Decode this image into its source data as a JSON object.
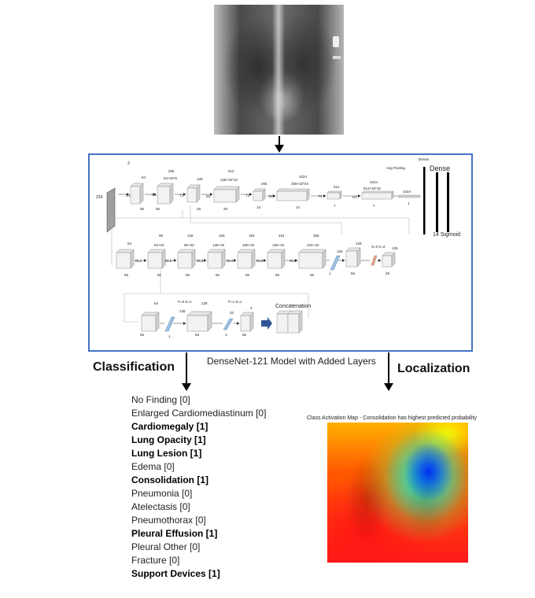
{
  "model": {
    "caption": "DenseNet-121 Model with Added Layers",
    "top_row": {
      "input_depth": "3",
      "input_size": "224",
      "c1_channels": "64",
      "c1_size": "56",
      "c1_label": "C1",
      "d1_channels": "256",
      "d1_sub": "64+32*6",
      "d1_label": "D1",
      "d1_size": "56",
      "t1_label": "T1",
      "t1_channels": "128",
      "t1_size": "28",
      "d2_label": "D2",
      "d2_channels": "512",
      "d2_sub": "128+32*12",
      "d2_size": "28",
      "t2_label": "T2",
      "t2_channels": "256",
      "t2_size": "14",
      "d3_label": "D3",
      "d3_channels": "1024",
      "d3_sub": "256+32*24",
      "d3_size": "14",
      "t3_label": "T3",
      "t3_channels": "512",
      "t3_size": "7",
      "d4_label": "D4",
      "d4_channels": "1024",
      "d4_sub": "512+32*16",
      "d4_size": "7",
      "pool_label": "Avg Pooling",
      "pool_channels": "1024",
      "pool_size": "1",
      "dense_small": "Dense",
      "dense_label": "Dense",
      "sigmoid_label": "14 Sigmoid"
    },
    "middle_row": {
      "dl0_channels": "64",
      "dl0_size": "56",
      "dl1_label": "DL1",
      "dl1_channels": "96",
      "dl1_sub": "64+32",
      "dl1_size": "56",
      "dl2_label": "DL2",
      "dl2_channels": "128",
      "dl2_sub": "96+32",
      "dl2_size": "56",
      "dl3_label": "DL3",
      "dl3_channels": "160",
      "dl3_sub": "128+32",
      "dl3_size": "56",
      "dl4_label": "DL4",
      "dl4_channels": "192",
      "dl4_sub": "160+32",
      "dl4_size": "56",
      "dl5_label": "DL5",
      "dl5_channels": "224",
      "dl5_sub": "192+32",
      "dl5_size": "56",
      "dl6_label": "DL5",
      "dl6_channels": "256",
      "dl6_sub": "224+32",
      "dl6_size": "56",
      "conv_channels": "128",
      "conv_size": "1",
      "conv2_channels": "128",
      "conv2_size": "56",
      "pool_params": "S=2 K=2",
      "out_channels": "128",
      "out_size": "28"
    },
    "bottom_row": {
      "in_channels": "64",
      "in_size": "56",
      "bn_size": "1",
      "conv_params": "P=0 S=1",
      "conv_channels_a": "128",
      "conv_channels": "128",
      "conv_size": "56",
      "conv2_params": "P=1 S=1",
      "conv2_channels": "32",
      "conv2_size": "3",
      "out_channels": "3",
      "out_size": "56",
      "concat_label": "Concatenation"
    }
  },
  "classification": {
    "title": "Classification",
    "findings": [
      {
        "text": "No Finding  [0]",
        "positive": false
      },
      {
        "text": "Enlarged Cardiomediastinum [0]",
        "positive": false
      },
      {
        "text": "Cardiomegaly [1]",
        "positive": true
      },
      {
        "text": "Lung Opacity [1]",
        "positive": true
      },
      {
        "text": "Lung Lesion [1]",
        "positive": true
      },
      {
        "text": "Edema [0]",
        "positive": false
      },
      {
        "text": "Consolidation [1]",
        "positive": true
      },
      {
        "text": "Pneumonia [0]",
        "positive": false
      },
      {
        "text": "Atelectasis [0]",
        "positive": false
      },
      {
        "text": "Pneumothorax [0]",
        "positive": false
      },
      {
        "text": "Pleural Effusion [1]",
        "positive": true
      },
      {
        "text": "Pleural Other [0]",
        "positive": false
      },
      {
        "text": "Fracture [0]",
        "positive": false
      },
      {
        "text": "Support Devices [1]",
        "positive": true
      }
    ]
  },
  "localization": {
    "title": "Localization",
    "cam_title": "Class Activation Map - Consolidation has highest predicted probability"
  },
  "colors": {
    "frame_border": "#4472c4",
    "block_fill": "#f2f2f2",
    "block_stroke": "#8a8a8a",
    "bn_fill": "#9dc3e6",
    "pool_fill": "#e2a487",
    "arrow_blue": "#2f5597"
  }
}
